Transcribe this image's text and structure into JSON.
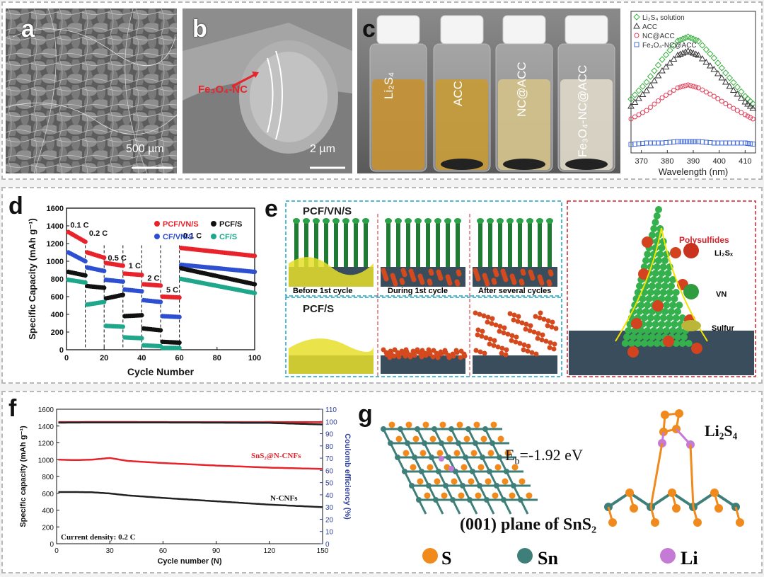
{
  "panel_a": {
    "label": "a",
    "scalebar": "500 µm"
  },
  "panel_b": {
    "label": "b",
    "annotation": "Fe₃O₄-NC",
    "scalebar": "2 µm"
  },
  "panel_c": {
    "label": "c",
    "vials": [
      "Li₂S₄",
      "ACC",
      "NC@ACC",
      "Fe₃O₄-NC@ACC"
    ],
    "vial_colors": [
      "#c8902a",
      "#c99a30",
      "#d7c48a",
      "#e2dccb"
    ]
  },
  "chart_data": [
    {
      "type": "line",
      "title": "",
      "xlabel": "Wavelength (nm)",
      "ylabel": "",
      "xticks": [
        "370",
        "380",
        "390",
        "400",
        "410"
      ],
      "xlim": [
        366,
        414
      ],
      "legend": [
        "Li₂S₄ solution",
        "ACC",
        "NC@ACC",
        "Fe₃O₄-NC@ACC"
      ],
      "legend_position": "top-left",
      "series": [
        {
          "name": "Li₂S₄ solution",
          "color": "#3cb043",
          "marker": "diamond",
          "x": [
            366,
            372,
            378,
            384,
            388,
            392,
            398,
            404,
            410,
            414
          ],
          "y": [
            0.38,
            0.5,
            0.66,
            0.79,
            0.82,
            0.79,
            0.67,
            0.53,
            0.4,
            0.33
          ]
        },
        {
          "name": "ACC",
          "color": "#333333",
          "marker": "triangle",
          "x": [
            366,
            372,
            378,
            384,
            388,
            392,
            398,
            404,
            410,
            414
          ],
          "y": [
            0.33,
            0.44,
            0.58,
            0.69,
            0.72,
            0.69,
            0.59,
            0.47,
            0.36,
            0.3
          ]
        },
        {
          "name": "NC@ACC",
          "color": "#e0405a",
          "marker": "circle",
          "x": [
            366,
            372,
            378,
            384,
            388,
            392,
            398,
            404,
            410,
            414
          ],
          "y": [
            0.24,
            0.3,
            0.39,
            0.46,
            0.48,
            0.46,
            0.4,
            0.33,
            0.27,
            0.23
          ]
        },
        {
          "name": "Fe₃O₄-NC@ACC",
          "color": "#4a6fd6",
          "marker": "square",
          "x": [
            366,
            372,
            378,
            384,
            388,
            392,
            398,
            404,
            410,
            414
          ],
          "y": [
            0.06,
            0.07,
            0.07,
            0.08,
            0.08,
            0.08,
            0.07,
            0.07,
            0.07,
            0.06
          ]
        }
      ]
    },
    {
      "type": "scatter",
      "title": "",
      "xlabel": "Cycle Number",
      "ylabel": "Specific Capacity (mAh g⁻¹)",
      "xticks": [
        "0",
        "20",
        "40",
        "60",
        "80",
        "100"
      ],
      "yticks": [
        "0",
        "200",
        "400",
        "600",
        "800",
        "1000",
        "1200",
        "1400",
        "1600"
      ],
      "xlim": [
        0,
        100
      ],
      "ylim": [
        0,
        1600
      ],
      "rate_labels": [
        "0.1 C",
        "0.2 C",
        "0.5 C",
        "1 C",
        "2 C",
        "5 C",
        "0.1 C"
      ],
      "dividers": [
        10,
        20,
        30,
        40,
        50,
        60
      ],
      "legend": [
        "PCF/VN/S",
        "PCF/S",
        "CF/VN/S",
        "CF/S"
      ],
      "legend_position": "top-right",
      "series": [
        {
          "name": "PCF/VN/S",
          "color": "#e8232b",
          "segments": [
            [
              1,
              10,
              1330,
              1220
            ],
            [
              11,
              20,
              1100,
              1040
            ],
            [
              21,
              30,
              980,
              950
            ],
            [
              31,
              40,
              860,
              845
            ],
            [
              41,
              50,
              740,
              725
            ],
            [
              51,
              60,
              600,
              590
            ],
            [
              61,
              100,
              1150,
              1060
            ]
          ]
        },
        {
          "name": "CF/VN/S",
          "color": "#2d4fd0",
          "segments": [
            [
              1,
              10,
              1100,
              1000
            ],
            [
              11,
              20,
              930,
              890
            ],
            [
              21,
              30,
              790,
              770
            ],
            [
              31,
              40,
              680,
              660
            ],
            [
              41,
              50,
              560,
              540
            ],
            [
              51,
              60,
              380,
              370
            ],
            [
              61,
              100,
              960,
              880
            ]
          ]
        },
        {
          "name": "PCF/S",
          "color": "#111111",
          "segments": [
            [
              1,
              10,
              880,
              840
            ],
            [
              11,
              20,
              720,
              700
            ],
            [
              21,
              30,
              580,
              620
            ],
            [
              31,
              40,
              380,
              390
            ],
            [
              41,
              50,
              240,
              220
            ],
            [
              51,
              60,
              90,
              80
            ],
            [
              61,
              100,
              920,
              740
            ]
          ]
        },
        {
          "name": "CF/S",
          "color": "#1ea78a",
          "segments": [
            [
              1,
              10,
              790,
              760
            ],
            [
              11,
              20,
              510,
              540
            ],
            [
              21,
              30,
              270,
              260
            ],
            [
              31,
              40,
              140,
              130
            ],
            [
              41,
              50,
              50,
              40
            ],
            [
              51,
              60,
              20,
              20
            ],
            [
              61,
              100,
              800,
              640
            ]
          ]
        }
      ]
    },
    {
      "type": "line",
      "title": "",
      "xlabel": "Cycle number (N)",
      "ylabel": "Specific capacity (mAh g⁻¹)",
      "y2label": "Coulomb efficiency (%)",
      "xticks": [
        "0",
        "30",
        "60",
        "90",
        "120",
        "150"
      ],
      "yticks": [
        "0",
        "200",
        "400",
        "600",
        "800",
        "1000",
        "1200",
        "1400",
        "1600"
      ],
      "y2ticks": [
        "0",
        "10",
        "20",
        "30",
        "40",
        "50",
        "60",
        "70",
        "80",
        "90",
        "100",
        "110"
      ],
      "xlim": [
        0,
        150
      ],
      "ylim": [
        0,
        1600
      ],
      "y2lim": [
        0,
        110
      ],
      "annotations": [
        "SnS₂@N-CNFs",
        "N-CNFs",
        "Current density: 0.2 C"
      ],
      "series": [
        {
          "name": "SnS₂@N-CNFs capacity",
          "color": "#e8232b",
          "x": [
            1,
            10,
            20,
            30,
            40,
            60,
            90,
            120,
            150
          ],
          "y": [
            1000,
            995,
            1000,
            1020,
            985,
            960,
            930,
            905,
            890
          ]
        },
        {
          "name": "N-CNFs capacity",
          "color": "#222222",
          "x": [
            1,
            10,
            20,
            30,
            40,
            60,
            90,
            120,
            150
          ],
          "y": [
            615,
            615,
            612,
            598,
            575,
            545,
            505,
            465,
            435
          ]
        },
        {
          "name": "SnS₂@N-CNFs CE",
          "color": "#e8232b",
          "axis": "y2",
          "x": [
            1,
            30,
            60,
            90,
            120,
            150
          ],
          "y": [
            99.5,
            99.6,
            99.5,
            99.4,
            99.5,
            99.4
          ]
        },
        {
          "name": "N-CNFs CE",
          "color": "#222222",
          "axis": "y2",
          "x": [
            1,
            30,
            60,
            90,
            120,
            150
          ],
          "y": [
            99,
            99.2,
            99.1,
            99,
            98.8,
            97.5
          ]
        }
      ]
    }
  ],
  "panel_d": {
    "label": "d"
  },
  "panel_e": {
    "label": "e",
    "row1_title": "PCF/VN/S",
    "row2_title": "PCF/S",
    "captions": [
      "Before 1st cycle",
      "During 1st cycle",
      "After several cycles"
    ],
    "legend_title": "Polysulfides",
    "legend": [
      "Li₂Sₓ",
      "VN",
      "Sulfur"
    ],
    "legend_colors": [
      "#c8321e",
      "#2e9c3f",
      "#b9b63a"
    ]
  },
  "panel_f": {
    "label": "f"
  },
  "panel_g": {
    "label": "g",
    "energy": "Eₕ=-1.92 eV",
    "energy_main": "E",
    "energy_sub": "b",
    "energy_rest": "=-1.92 eV",
    "molecule": "Li₂S₄",
    "plane_caption": "(001) plane of SnS₂",
    "atoms": [
      "S",
      "Sn",
      "Li"
    ],
    "atom_colors": [
      "#f08a1c",
      "#3f7f7a",
      "#c57ad6"
    ]
  }
}
